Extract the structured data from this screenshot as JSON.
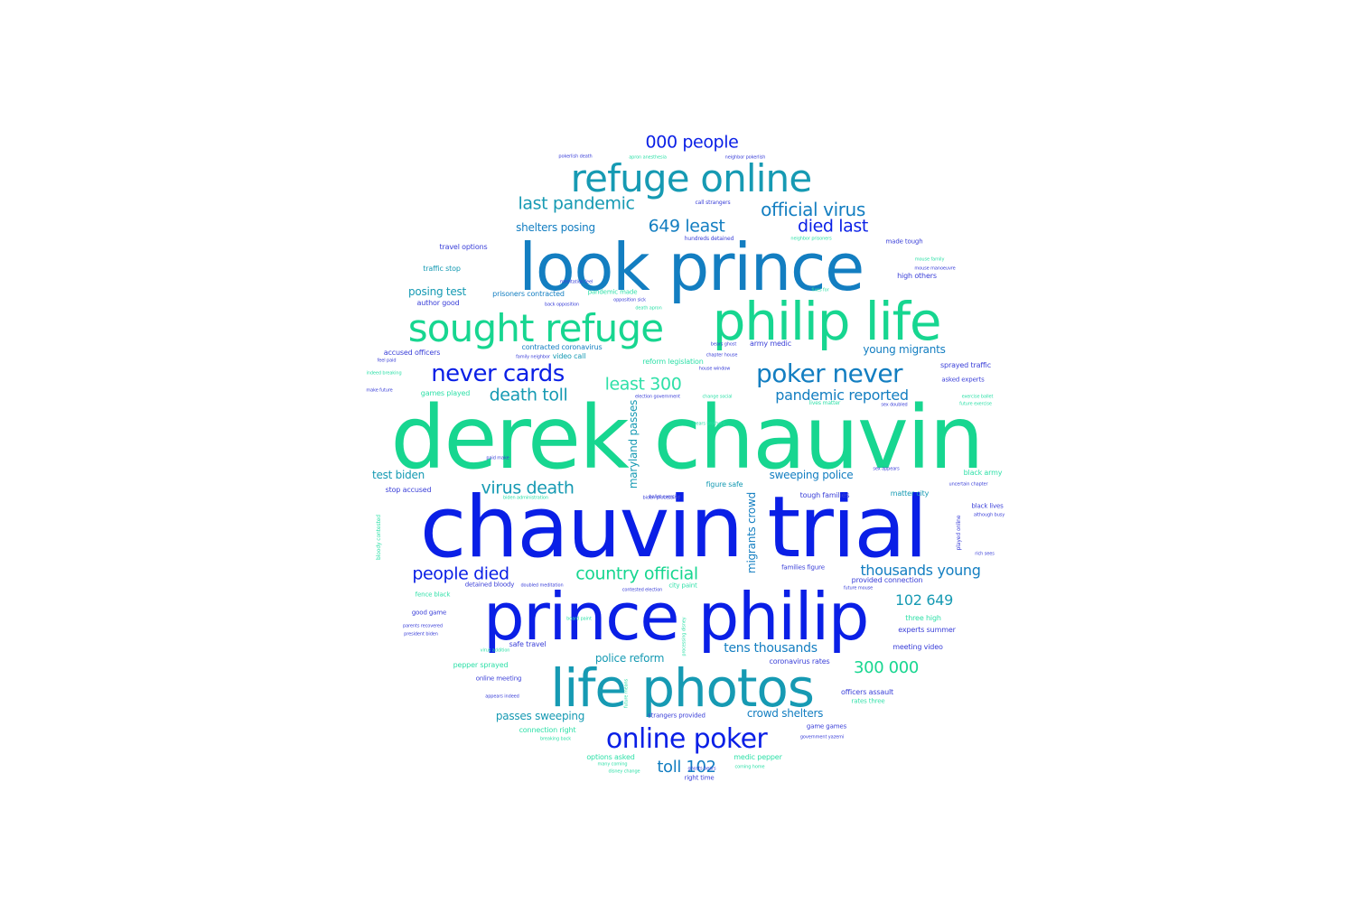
{
  "palette": {
    "blue": "#0a1fe6",
    "teal": "#169ab3",
    "ocean": "#137ec1",
    "green": "#17d690",
    "mint": "#2fe0a8",
    "indigo": "#3a3fd8"
  },
  "words": [
    {
      "text": "derek chauvin",
      "color": "green"
    },
    {
      "text": "chauvin trial",
      "color": "blue"
    },
    {
      "text": "prince philip",
      "color": "blue"
    },
    {
      "text": "look prince",
      "color": "ocean"
    },
    {
      "text": "philip life",
      "color": "green"
    },
    {
      "text": "life photos",
      "color": "teal"
    },
    {
      "text": "refuge online",
      "color": "teal"
    },
    {
      "text": "sought refuge",
      "color": "green"
    },
    {
      "text": "online poker",
      "color": "blue"
    },
    {
      "text": "poker never",
      "color": "ocean"
    },
    {
      "text": "never cards",
      "color": "blue"
    },
    {
      "text": "000 people",
      "color": "blue"
    },
    {
      "text": "official virus",
      "color": "ocean"
    },
    {
      "text": "last pandemic",
      "color": "teal"
    },
    {
      "text": "649 least",
      "color": "ocean"
    },
    {
      "text": "died last",
      "color": "blue"
    },
    {
      "text": "least 300",
      "color": "mint"
    },
    {
      "text": "death toll",
      "color": "teal"
    },
    {
      "text": "pandemic reported",
      "color": "ocean"
    },
    {
      "text": "virus death",
      "color": "teal"
    },
    {
      "text": "people died",
      "color": "blue"
    },
    {
      "text": "country official",
      "color": "green"
    },
    {
      "text": "thousands young",
      "color": "ocean"
    },
    {
      "text": "102 649",
      "color": "teal"
    },
    {
      "text": "300 000",
      "color": "green"
    },
    {
      "text": "tens thousands",
      "color": "ocean"
    },
    {
      "text": "toll 102",
      "color": "ocean"
    },
    {
      "text": "shelters posing",
      "color": "ocean"
    },
    {
      "text": "posing test",
      "color": "teal"
    },
    {
      "text": "young migrants",
      "color": "ocean"
    },
    {
      "text": "sweeping police",
      "color": "ocean"
    },
    {
      "text": "test biden",
      "color": "teal"
    },
    {
      "text": "police reform",
      "color": "teal"
    },
    {
      "text": "crowd shelters",
      "color": "ocean"
    },
    {
      "text": "passes sweeping",
      "color": "teal"
    },
    {
      "text": "maryland passes",
      "color": "teal"
    },
    {
      "text": "migrants crowd",
      "color": "ocean"
    },
    {
      "text": "travel options",
      "color": "indigo"
    },
    {
      "text": "traffic stop",
      "color": "teal"
    },
    {
      "text": "prisoners contracted",
      "color": "ocean"
    },
    {
      "text": "pandemic made",
      "color": "mint"
    },
    {
      "text": "author good",
      "color": "indigo"
    },
    {
      "text": "accused officers",
      "color": "indigo"
    },
    {
      "text": "contracted coronavirus",
      "color": "ocean"
    },
    {
      "text": "video call",
      "color": "teal"
    },
    {
      "text": "army medic",
      "color": "indigo"
    },
    {
      "text": "reform legislation",
      "color": "mint"
    },
    {
      "text": "sprayed traffic",
      "color": "indigo"
    },
    {
      "text": "asked experts",
      "color": "indigo"
    },
    {
      "text": "games played",
      "color": "mint"
    },
    {
      "text": "stop accused",
      "color": "indigo"
    },
    {
      "text": "figure safe",
      "color": "teal"
    },
    {
      "text": "tough families",
      "color": "indigo"
    },
    {
      "text": "matter city",
      "color": "teal"
    },
    {
      "text": "black army",
      "color": "mint"
    },
    {
      "text": "black lives",
      "color": "indigo"
    },
    {
      "text": "families figure",
      "color": "indigo"
    },
    {
      "text": "provided connection",
      "color": "indigo"
    },
    {
      "text": "detained bloody",
      "color": "indigo"
    },
    {
      "text": "city paint",
      "color": "mint"
    },
    {
      "text": "fence black",
      "color": "mint"
    },
    {
      "text": "good game",
      "color": "indigo"
    },
    {
      "text": "three high",
      "color": "mint"
    },
    {
      "text": "experts summer",
      "color": "indigo"
    },
    {
      "text": "meeting video",
      "color": "indigo"
    },
    {
      "text": "safe travel",
      "color": "indigo"
    },
    {
      "text": "pepper sprayed",
      "color": "mint"
    },
    {
      "text": "online meeting",
      "color": "indigo"
    },
    {
      "text": "coronavirus rates",
      "color": "indigo"
    },
    {
      "text": "officers assault",
      "color": "indigo"
    },
    {
      "text": "rates three",
      "color": "mint"
    },
    {
      "text": "strangers provided",
      "color": "indigo"
    },
    {
      "text": "connection right",
      "color": "mint"
    },
    {
      "text": "game games",
      "color": "indigo"
    },
    {
      "text": "options asked",
      "color": "mint"
    },
    {
      "text": "medic pepper",
      "color": "mint"
    },
    {
      "text": "right time",
      "color": "indigo"
    },
    {
      "text": "made tough",
      "color": "indigo"
    },
    {
      "text": "high others",
      "color": "indigo"
    },
    {
      "text": "call strangers",
      "color": "indigo"
    },
    {
      "text": "hundreds detained",
      "color": "indigo"
    },
    {
      "text": "bloody contested",
      "color": "mint"
    },
    {
      "text": "played online",
      "color": "indigo"
    },
    {
      "text": "lives matter",
      "color": "mint"
    },
    {
      "text": "change social",
      "color": "mint"
    },
    {
      "text": "sex doubled",
      "color": "indigo"
    },
    {
      "text": "coming home",
      "color": "mint"
    },
    {
      "text": "disney change",
      "color": "mint"
    },
    {
      "text": "many coming",
      "color": "mint"
    },
    {
      "text": "breaking back",
      "color": "mint"
    },
    {
      "text": "government yazemi",
      "color": "indigo"
    },
    {
      "text": "parents recovered",
      "color": "indigo"
    },
    {
      "text": "president biden",
      "color": "indigo"
    },
    {
      "text": "virus addition",
      "color": "mint"
    },
    {
      "text": "appears indeed",
      "color": "indigo"
    },
    {
      "text": "biden administration",
      "color": "mint"
    },
    {
      "text": "neighbor prisoners",
      "color": "mint"
    },
    {
      "text": "bears ghost",
      "color": "indigo"
    },
    {
      "text": "chapter house",
      "color": "indigo"
    },
    {
      "text": "house window",
      "color": "indigo"
    },
    {
      "text": "family neighbor",
      "color": "indigo"
    },
    {
      "text": "mouse family",
      "color": "mint"
    },
    {
      "text": "mouse manoeuvre",
      "color": "indigo"
    },
    {
      "text": "indeed breaking",
      "color": "mint"
    },
    {
      "text": "make future",
      "color": "indigo"
    },
    {
      "text": "feel paid",
      "color": "indigo"
    },
    {
      "text": "paid make",
      "color": "indigo"
    },
    {
      "text": "fixes for",
      "color": "mint"
    },
    {
      "text": "rich sees",
      "color": "indigo"
    },
    {
      "text": "although busy",
      "color": "indigo"
    },
    {
      "text": "processing disney",
      "color": "mint"
    },
    {
      "text": "contested election",
      "color": "indigo"
    },
    {
      "text": "doubled meditation",
      "color": "indigo"
    },
    {
      "text": "future mouse",
      "color": "indigo"
    },
    {
      "text": "sex appears",
      "color": "indigo"
    },
    {
      "text": "exercise ballet",
      "color": "mint"
    },
    {
      "text": "ballet exercise",
      "color": "indigo"
    },
    {
      "text": "apron anesthesia",
      "color": "mint"
    },
    {
      "text": "meditation feel",
      "color": "indigo"
    },
    {
      "text": "pokerlish death",
      "color": "indigo"
    },
    {
      "text": "neighbor pokerlish",
      "color": "indigo"
    },
    {
      "text": "back opposition",
      "color": "indigo"
    },
    {
      "text": "opposition sick",
      "color": "indigo"
    },
    {
      "text": "death apron",
      "color": "mint"
    },
    {
      "text": "board paint",
      "color": "mint"
    },
    {
      "text": "election government",
      "color": "indigo"
    },
    {
      "text": "bears brothers",
      "color": "mint"
    },
    {
      "text": "future exercise",
      "color": "mint"
    },
    {
      "text": "uncertain chapter",
      "color": "indigo"
    },
    {
      "text": "ghosts bears",
      "color": "indigo"
    },
    {
      "text": "biden processing",
      "color": "indigo"
    },
    {
      "text": "future means",
      "color": "mint"
    },
    {
      "text": "holds bears",
      "color": "mint"
    }
  ]
}
